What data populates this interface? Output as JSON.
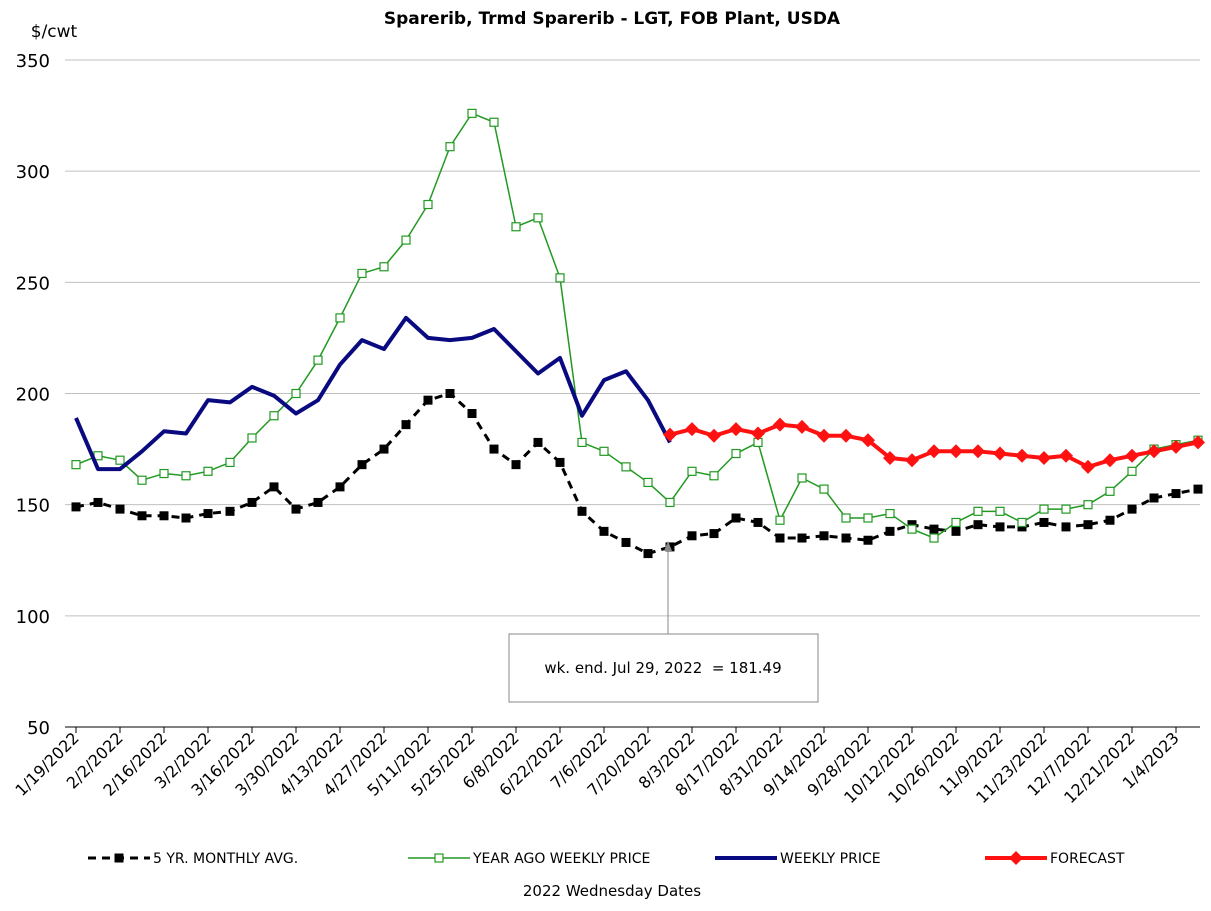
{
  "chart_data": {
    "type": "line",
    "title": "Sparerib, Trmd Sparerib - LGT, FOB Plant, USDA",
    "y_unit": "$/cwt",
    "x_label": "2022 Wednesday Dates",
    "annotation": "wk. end. Jul 29, 2022  = 181.49",
    "categories": [
      "1/19/2022",
      null,
      "2/2/2022",
      null,
      "2/16/2022",
      null,
      "3/2/2022",
      null,
      "3/16/2022",
      null,
      "3/30/2022",
      null,
      "4/13/2022",
      null,
      "4/27/2022",
      null,
      "5/11/2022",
      null,
      "5/25/2022",
      null,
      "6/8/2022",
      null,
      "6/22/2022",
      null,
      "7/6/2022",
      null,
      "7/20/2022",
      null,
      "8/3/2022",
      null,
      "8/17/2022",
      null,
      "8/31/2022",
      null,
      "9/14/2022",
      null,
      "9/28/2022",
      null,
      "10/12/2022",
      null,
      "10/26/2022",
      null,
      "11/9/2022",
      null,
      "11/23/2022",
      null,
      "12/7/2022",
      null,
      "12/21/2022",
      null,
      "1/4/2023",
      null
    ],
    "ylim": [
      50,
      350
    ],
    "yticks": [
      50,
      100,
      150,
      200,
      250,
      300,
      350
    ],
    "grid": true,
    "series": [
      {
        "name": "5 YR. MONTHLY AVG.",
        "color": "#000000",
        "marker": "square",
        "dash": true,
        "width": 3,
        "values": [
          149,
          151,
          148,
          145,
          145,
          144,
          146,
          147,
          151,
          158,
          148,
          151,
          158,
          168,
          175,
          186,
          197,
          200,
          191,
          175,
          168,
          178,
          169,
          147,
          138,
          133,
          128,
          131,
          136,
          137,
          144,
          142,
          135,
          135,
          136,
          135,
          134,
          138,
          141,
          139,
          138,
          141,
          140,
          140,
          142,
          140,
          141,
          143,
          148,
          153,
          155,
          157
        ]
      },
      {
        "name": "YEAR AGO WEEKLY PRICE",
        "color": "#229922",
        "marker": "open-square",
        "dash": false,
        "width": 1.5,
        "values": [
          168,
          172,
          170,
          161,
          164,
          163,
          165,
          169,
          180,
          190,
          200,
          215,
          234,
          254,
          257,
          269,
          285,
          311,
          326,
          322,
          275,
          279,
          252,
          178,
          174,
          167,
          160,
          151,
          165,
          163,
          173,
          178,
          143,
          162,
          157,
          144,
          144,
          146,
          139,
          135,
          142,
          147,
          147,
          142,
          148,
          148,
          150,
          156,
          165,
          175,
          177,
          179
        ]
      },
      {
        "name": "WEEKLY PRICE",
        "color": "#0a0a80",
        "marker": "none",
        "dash": false,
        "width": 4,
        "values": [
          189,
          166,
          166,
          174,
          183,
          182,
          197,
          196,
          203,
          199,
          191,
          197,
          213,
          224,
          220,
          234,
          225,
          224,
          225,
          229,
          219,
          209,
          216,
          190,
          206,
          210,
          197,
          178,
          null,
          null,
          null,
          null,
          null,
          null,
          null,
          null,
          null,
          null,
          null,
          null,
          null,
          null,
          null,
          null,
          null,
          null,
          null,
          null,
          null,
          null,
          null,
          null
        ]
      },
      {
        "name": "FORECAST",
        "color": "#ff1111",
        "marker": "diamond",
        "dash": false,
        "width": 4,
        "values": [
          null,
          null,
          null,
          null,
          null,
          null,
          null,
          null,
          null,
          null,
          null,
          null,
          null,
          null,
          null,
          null,
          null,
          null,
          null,
          null,
          null,
          null,
          null,
          null,
          null,
          null,
          null,
          181.49,
          184,
          181,
          184,
          182,
          186,
          185,
          181,
          181,
          179,
          171,
          170,
          174,
          174,
          174,
          173,
          172,
          171,
          172,
          167,
          170,
          172,
          174,
          176,
          178
        ]
      }
    ]
  }
}
